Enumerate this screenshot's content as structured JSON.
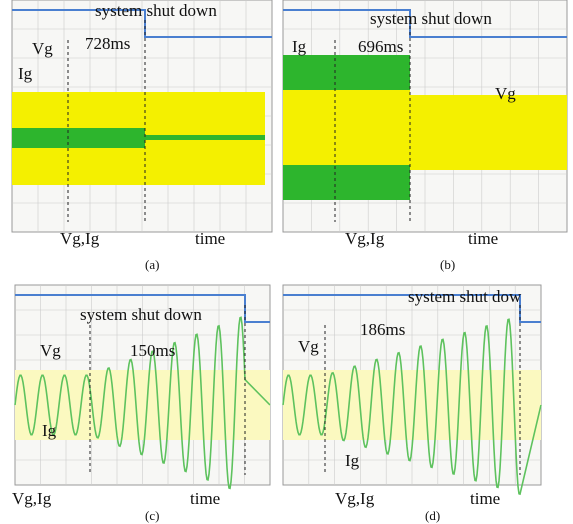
{
  "panels": [
    {
      "shutdown_label": "system shut down",
      "duration": "728ms",
      "vg_label": "Vg",
      "ig_label": "Ig",
      "x_label": "Vg,Ig",
      "time_label": "time",
      "caption": "(a)"
    },
    {
      "shutdown_label": "system shut down",
      "duration": "696ms",
      "vg_label": "Vg",
      "ig_label": "Ig",
      "x_label": "Vg,Ig",
      "time_label": "time",
      "caption": "(b)"
    },
    {
      "shutdown_label": "system shut down",
      "duration": "150ms",
      "vg_label": "Vg",
      "ig_label": "Ig",
      "x_label": "Vg,Ig",
      "time_label": "time",
      "caption": "(c)"
    },
    {
      "shutdown_label": "system shut dow",
      "duration": "186ms",
      "vg_label": "Vg",
      "ig_label": "Ig",
      "x_label": "Vg,Ig",
      "time_label": "time",
      "caption": "(d)"
    }
  ]
}
